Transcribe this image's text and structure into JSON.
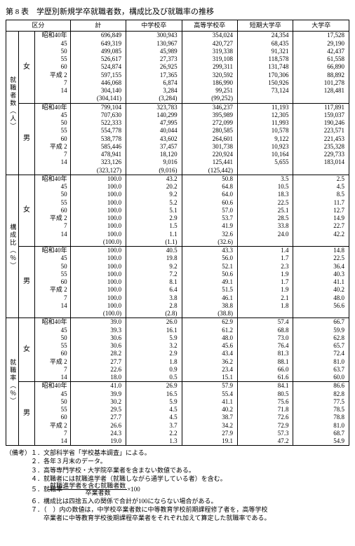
{
  "title": "第 8 表　学歴別新規学卒就職者数，構成比及び就職率の推移",
  "headers": {
    "kubun": "区分",
    "total": "計",
    "chugaku": "中学校卒",
    "koko": "高等学校卒",
    "tandai": "短期大学卒",
    "daigaku": "大学卒"
  },
  "row_groups": [
    {
      "label": "就職者数（人）",
      "gender": "女"
    },
    {
      "label": "",
      "gender": "男"
    },
    {
      "label": "構成比（％）",
      "gender": "女"
    },
    {
      "label": "",
      "gender": "男"
    },
    {
      "label": "就職率（％）",
      "gender": "女"
    },
    {
      "label": "",
      "gender": "男"
    }
  ],
  "years": [
    "昭和40年",
    "45",
    "50",
    "55",
    "60",
    "平成 2",
    "7",
    "14",
    ""
  ],
  "blocks": [
    {
      "rows": [
        [
          "昭和40年",
          "696,849",
          "300,943",
          "354,024",
          "24,354",
          "17,528"
        ],
        [
          "45",
          "649,319",
          "130,967",
          "420,727",
          "68,435",
          "29,190"
        ],
        [
          "50",
          "499,085",
          "45,989",
          "319,338",
          "91,321",
          "42,437"
        ],
        [
          "55",
          "526,617",
          "27,373",
          "319,108",
          "118,578",
          "61,558"
        ],
        [
          "60",
          "524,874",
          "26,925",
          "299,311",
          "131,748",
          "66,890"
        ],
        [
          "平成 2",
          "597,155",
          "17,365",
          "320,592",
          "170,306",
          "88,892"
        ],
        [
          "7",
          "446,068",
          "6,874",
          "186,990",
          "150,926",
          "101,278"
        ],
        [
          "14",
          "304,140",
          "3,284",
          "99,251",
          "73,124",
          "128,481"
        ],
        [
          "",
          "(304,141)",
          "(3,284)",
          "(99,252)",
          "",
          ""
        ]
      ]
    },
    {
      "rows": [
        [
          "昭和40年",
          "799,104",
          "323,783",
          "346,237",
          "11,193",
          "117,891"
        ],
        [
          "45",
          "707,630",
          "140,299",
          "395,989",
          "12,305",
          "159,037"
        ],
        [
          "50",
          "522,333",
          "47,995",
          "272,099",
          "11,993",
          "190,246"
        ],
        [
          "55",
          "554,778",
          "40,044",
          "280,585",
          "10,578",
          "223,571"
        ],
        [
          "60",
          "538,778",
          "43,602",
          "264,601",
          "9,122",
          "221,453"
        ],
        [
          "平成 2",
          "585,446",
          "37,457",
          "301,738",
          "10,923",
          "235,328"
        ],
        [
          "7",
          "478,941",
          "18,120",
          "220,924",
          "10,164",
          "229,733"
        ],
        [
          "14",
          "323,126",
          "9,016",
          "125,441",
          "5,655",
          "183,014"
        ],
        [
          "",
          "(323,127)",
          "(9,016)",
          "(125,442)",
          "",
          ""
        ]
      ]
    },
    {
      "rows": [
        [
          "昭和40年",
          "100.0",
          "43.2",
          "50.8",
          "3.5",
          "2.5"
        ],
        [
          "45",
          "100.0",
          "20.2",
          "64.8",
          "10.5",
          "4.5"
        ],
        [
          "50",
          "100.0",
          "9.2",
          "64.0",
          "18.3",
          "8.5"
        ],
        [
          "55",
          "100.0",
          "5.2",
          "60.6",
          "22.5",
          "11.7"
        ],
        [
          "60",
          "100.0",
          "5.1",
          "57.0",
          "25.1",
          "12.7"
        ],
        [
          "平成 2",
          "100.0",
          "2.9",
          "53.7",
          "28.5",
          "14.9"
        ],
        [
          "7",
          "100.0",
          "1.5",
          "41.9",
          "33.8",
          "22.7"
        ],
        [
          "14",
          "100.0",
          "1.1",
          "32.6",
          "24.0",
          "42.2"
        ],
        [
          "",
          "(100.0)",
          "(1.1)",
          "(32.6)",
          "",
          ""
        ]
      ]
    },
    {
      "rows": [
        [
          "昭和40年",
          "100.0",
          "40.5",
          "43.3",
          "1.4",
          "14.8"
        ],
        [
          "45",
          "100.0",
          "19.8",
          "56.0",
          "1.7",
          "22.5"
        ],
        [
          "50",
          "100.0",
          "9.2",
          "52.1",
          "2.3",
          "36.4"
        ],
        [
          "55",
          "100.0",
          "7.2",
          "50.6",
          "1.9",
          "40.3"
        ],
        [
          "60",
          "100.0",
          "8.1",
          "49.1",
          "1.7",
          "41.1"
        ],
        [
          "平成 2",
          "100.0",
          "6.4",
          "51.5",
          "1.9",
          "40.2"
        ],
        [
          "7",
          "100.0",
          "3.8",
          "46.1",
          "2.1",
          "48.0"
        ],
        [
          "14",
          "100.0",
          "2.8",
          "38.8",
          "1.8",
          "56.6"
        ],
        [
          "",
          "(100.0)",
          "(2.8)",
          "(38.8)",
          "",
          ""
        ]
      ]
    },
    {
      "rows": [
        [
          "昭和40年",
          "39.0",
          "26.0",
          "62.9",
          "57.4",
          "66.7"
        ],
        [
          "45",
          "39.3",
          "16.1",
          "61.2",
          "68.8",
          "59.9"
        ],
        [
          "50",
          "30.6",
          "5.9",
          "48.0",
          "73.0",
          "62.8"
        ],
        [
          "55",
          "30.6",
          "3.2",
          "45.6",
          "76.4",
          "65.7"
        ],
        [
          "60",
          "28.2",
          "2.9",
          "43.4",
          "81.3",
          "72.4"
        ],
        [
          "平成 2",
          "27.7",
          "1.8",
          "36.2",
          "88.1",
          "81.0"
        ],
        [
          "7",
          "22.6",
          "0.9",
          "23.4",
          "66.0",
          "63.7"
        ],
        [
          "14",
          "18.0",
          "0.5",
          "15.1",
          "61.6",
          "60.0"
        ]
      ]
    },
    {
      "rows": [
        [
          "昭和40年",
          "41.0",
          "26.9",
          "57.9",
          "84.1",
          "86.6"
        ],
        [
          "45",
          "39.9",
          "16.5",
          "55.4",
          "80.5",
          "82.8"
        ],
        [
          "50",
          "30.2",
          "5.9",
          "41.1",
          "75.6",
          "77.5"
        ],
        [
          "55",
          "29.5",
          "4.5",
          "40.2",
          "71.8",
          "78.5"
        ],
        [
          "60",
          "27.7",
          "4.5",
          "38.7",
          "72.6",
          "78.8"
        ],
        [
          "平成 2",
          "26.6",
          "3.7",
          "34.2",
          "72.9",
          "81.0"
        ],
        [
          "7",
          "24.3",
          "2.2",
          "27.9",
          "57.3",
          "68.7"
        ],
        [
          "14",
          "19.0",
          "1.3",
          "19.1",
          "47.2",
          "54.9"
        ]
      ]
    }
  ],
  "notes": [
    "（備考）１．文部科学省「学校基本調査」による。",
    "　　　　２．各年３月末のデータ。",
    "　　　　３．高等専門学校・大学院卒業者を含まない数値である。",
    "　　　　４．就職者には就職進学者（就職しながら通学している者）を含む。",
    "　　　　５．就職率＝",
    "　　　　６．構成比は四捨五入の関係で合計が100にならない場合がある。",
    "　　　　７．（　）内の数値は，中学校卒業者数に中等教育学校前期課程修了者を，高等学校",
    "　　　　　　卒業者に中等教育学校後期課程卒業者をそれぞれ加えて算定した就職率である。"
  ],
  "formula": {
    "top": "就職進学者を含む就職者数",
    "bot": "卒業者数",
    "tail": "×100"
  }
}
